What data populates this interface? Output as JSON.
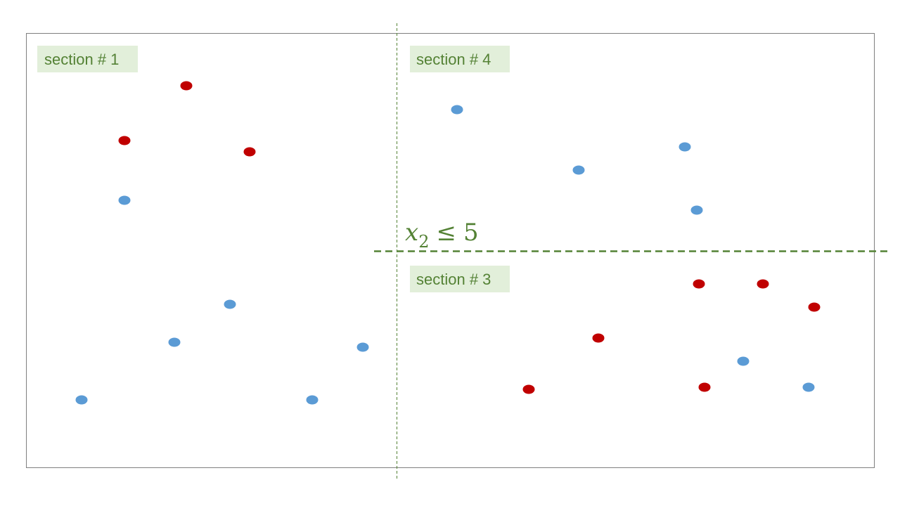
{
  "colors": {
    "class_red": "#C00000",
    "class_blue": "#5B9BD5",
    "divider_green": "#548235",
    "label_background": "#E2EFDA",
    "frame_border": "#7F7F7F"
  },
  "labels": {
    "section_1": "section # 1",
    "section_4": "section # 4",
    "section_3": "section # 3"
  },
  "split_condition": {
    "variable": "x",
    "subscript": "2",
    "operator": "≤",
    "threshold": "5"
  },
  "points": {
    "section_1": [
      "red",
      "red",
      "red",
      "blue",
      "blue",
      "blue",
      "blue",
      "blue",
      "blue"
    ],
    "section_4": [
      "blue",
      "blue",
      "blue",
      "blue"
    ],
    "section_3": [
      "red",
      "red",
      "red",
      "red",
      "red",
      "red",
      "blue",
      "blue"
    ]
  }
}
